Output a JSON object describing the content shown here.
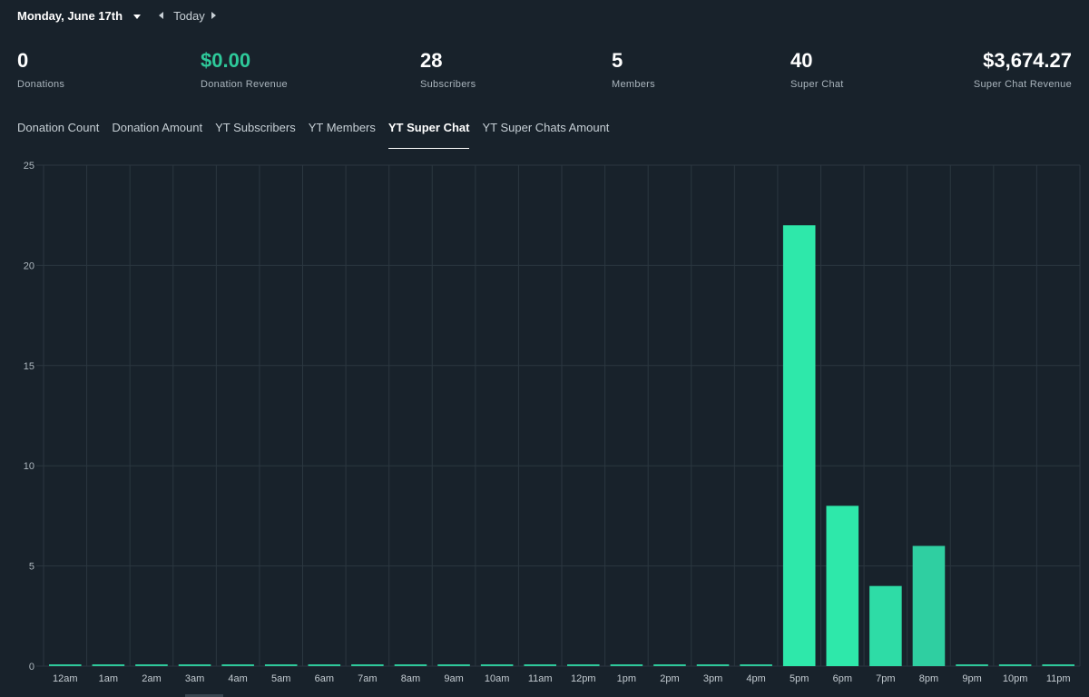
{
  "header": {
    "date": "Monday, June 17th",
    "today_label": "Today"
  },
  "stats": [
    {
      "value": "0",
      "label": "Donations"
    },
    {
      "value": "$0.00",
      "label": "Donation Revenue"
    },
    {
      "value": "28",
      "label": "Subscribers"
    },
    {
      "value": "5",
      "label": "Members"
    },
    {
      "value": "40",
      "label": "Super Chat"
    },
    {
      "value": "$3,674.27",
      "label": "Super Chat Revenue"
    }
  ],
  "tabs": [
    {
      "label": "Donation Count"
    },
    {
      "label": "Donation Amount"
    },
    {
      "label": "YT Subscribers"
    },
    {
      "label": "YT Members"
    },
    {
      "label": "YT Super Chat"
    },
    {
      "label": "YT Super Chats Amount"
    }
  ],
  "active_tab": "YT Super Chat",
  "colors": {
    "background": "#18222b",
    "accent": "#2ec99a",
    "bar_bright": "#2ee8aa",
    "bar_mid": "#2edca6",
    "bar_dim": "#2fcfa1",
    "grid": "#2b3740"
  },
  "chart_data": {
    "type": "bar",
    "categories": [
      "12am",
      "1am",
      "2am",
      "3am",
      "4am",
      "5am",
      "6am",
      "7am",
      "8am",
      "9am",
      "10am",
      "11am",
      "12pm",
      "1pm",
      "2pm",
      "3pm",
      "4pm",
      "5pm",
      "6pm",
      "7pm",
      "8pm",
      "9pm",
      "10pm",
      "11pm"
    ],
    "values": [
      0,
      0,
      0,
      0,
      0,
      0,
      0,
      0,
      0,
      0,
      0,
      0,
      0,
      0,
      0,
      0,
      0,
      22,
      8,
      4,
      6,
      0,
      0,
      0
    ],
    "yticks": [
      0,
      5,
      10,
      15,
      20,
      25
    ],
    "ylim": [
      0,
      25
    ],
    "grid": true
  }
}
